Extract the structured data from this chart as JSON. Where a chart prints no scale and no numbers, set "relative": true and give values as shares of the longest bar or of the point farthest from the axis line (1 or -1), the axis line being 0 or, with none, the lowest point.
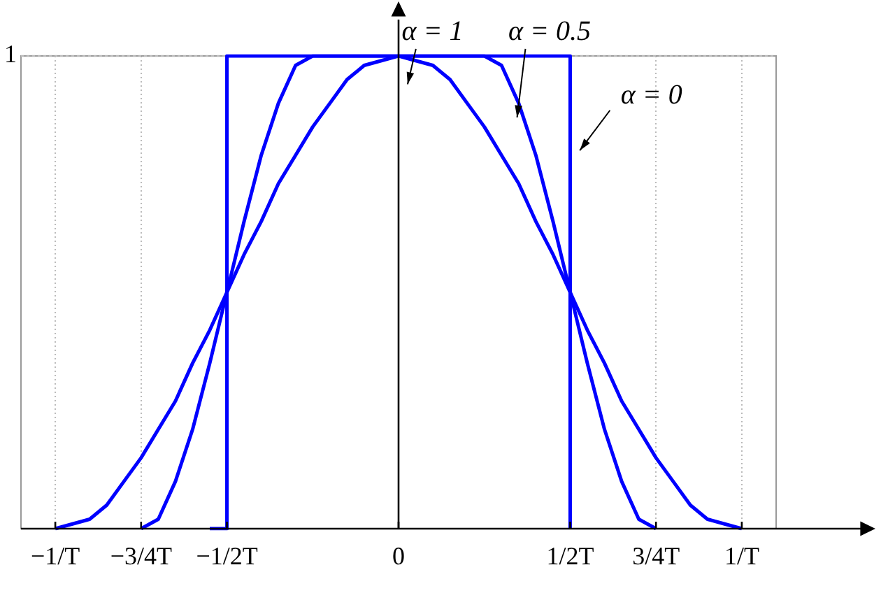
{
  "chart_data": {
    "type": "line",
    "relative": true,
    "categories": [
      null,
      null,
      "−1/T",
      null,
      null,
      null,
      null,
      "−3/4T",
      null,
      null,
      null,
      null,
      "−1/2T",
      null,
      null,
      null,
      null,
      null,
      null,
      null,
      null,
      null,
      "0",
      null,
      null,
      null,
      null,
      null,
      null,
      null,
      null,
      null,
      "1/2T",
      null,
      null,
      null,
      null,
      "3/4T",
      null,
      null,
      null,
      null,
      "1/T",
      null,
      null
    ],
    "grid": "x",
    "legend": false,
    "marker": "none",
    "line_style": "solid",
    "series": [
      {
        "color": "#0000ff",
        "values": [
          null,
          null,
          0,
          0.01,
          0.02,
          0.05,
          0.1,
          0.15,
          0.21,
          0.27,
          0.35,
          0.42,
          0.5,
          0.58,
          0.65,
          0.73,
          0.79,
          0.85,
          0.9,
          0.95,
          0.98,
          0.99,
          1,
          0.99,
          0.98,
          0.95,
          0.9,
          0.85,
          0.79,
          0.73,
          0.65,
          0.58,
          0.5,
          0.42,
          0.35,
          0.27,
          0.21,
          0.15,
          0.1,
          0.05,
          0.02,
          0.01,
          0,
          null,
          null
        ]
      },
      {
        "color": "#0000ff",
        "values": [
          null,
          null,
          null,
          null,
          null,
          null,
          null,
          0,
          0.02,
          0.1,
          0.21,
          0.35,
          0.5,
          0.65,
          0.79,
          0.9,
          0.98,
          1,
          1,
          1,
          1,
          1,
          1,
          1,
          1,
          1,
          1,
          1,
          0.98,
          0.9,
          0.79,
          0.65,
          0.5,
          0.35,
          0.21,
          0.1,
          0.02,
          0,
          null,
          null,
          null,
          null,
          null,
          null,
          null
        ]
      },
      {
        "type": "step",
        "color": "#0000ff",
        "values": [
          null,
          null,
          null,
          null,
          null,
          null,
          null,
          null,
          null,
          null,
          null,
          0,
          1,
          1,
          1,
          1,
          1,
          1,
          1,
          1,
          1,
          1,
          1,
          1,
          1,
          1,
          1,
          1,
          1,
          1,
          1,
          1,
          0,
          null,
          null,
          null,
          null,
          null,
          null,
          null,
          null,
          null,
          null,
          null,
          null
        ]
      }
    ],
    "ref_lines": [
      {
        "axis": "y",
        "value": 1,
        "label": "1",
        "color": "#bbbbbb",
        "line_style": "dotted"
      }
    ],
    "annotations": [
      "α = 1",
      "α = 0.5",
      "α = 0"
    ]
  }
}
